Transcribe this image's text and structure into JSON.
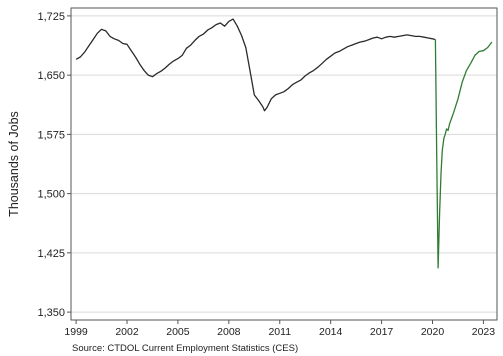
{
  "chart_data": {
    "type": "line",
    "title": "",
    "xlabel": "",
    "ylabel": "Thousands of Jobs",
    "ylim": [
      1340,
      1735
    ],
    "xlim": [
      1998.7,
      2023.8
    ],
    "yticks": [
      1350,
      1425,
      1500,
      1575,
      1650,
      1725
    ],
    "ytick_labels": [
      "1,350",
      "1,425",
      "1,500",
      "1,575",
      "1,650",
      "1,725"
    ],
    "xticks": [
      1999,
      2002,
      2005,
      2008,
      2011,
      2014,
      2017,
      2020,
      2023
    ],
    "xtick_labels": [
      "1999",
      "2002",
      "2005",
      "2008",
      "2011",
      "2014",
      "2017",
      "2020",
      "2023"
    ],
    "grid": "horizontal",
    "legend": "none",
    "colors": {
      "line": "#2b2b2b",
      "covid_segment": "#2e7d32",
      "grid": "#d9d9d9",
      "frame": "#555555"
    },
    "series": [
      {
        "x": [
          1999.0,
          1999.25,
          1999.5,
          1999.75,
          2000.0,
          2000.25,
          2000.5,
          2000.75,
          2001.0,
          2001.25,
          2001.5,
          2001.75,
          2002.0,
          2002.25,
          2002.5,
          2002.75,
          2003.0,
          2003.25,
          2003.5,
          2003.75,
          2004.0,
          2004.25,
          2004.5,
          2004.75,
          2005.0,
          2005.25,
          2005.5,
          2005.75,
          2006.0,
          2006.25,
          2006.5,
          2006.75,
          2007.0,
          2007.25,
          2007.5,
          2007.75,
          2008.0,
          2008.25,
          2008.5,
          2008.75,
          2009.0,
          2009.25,
          2009.5,
          2009.75,
          2010.0,
          2010.1,
          2010.25,
          2010.5,
          2010.75,
          2011.0,
          2011.25,
          2011.5,
          2011.75,
          2012.0,
          2012.25,
          2012.5,
          2012.75,
          2013.0,
          2013.25,
          2013.5,
          2013.75,
          2014.0,
          2014.25,
          2014.5,
          2014.75,
          2015.0,
          2015.25,
          2015.5,
          2015.75,
          2016.0,
          2016.25,
          2016.5,
          2016.75,
          2017.0,
          2017.25,
          2017.5,
          2017.75,
          2018.0,
          2018.25,
          2018.5,
          2018.75,
          2019.0,
          2019.25,
          2019.5,
          2019.75,
          2020.0,
          2020.17
        ],
        "y": [
          1670,
          1673,
          1679,
          1687,
          1695,
          1703,
          1708,
          1706,
          1699,
          1696,
          1694,
          1690,
          1689,
          1681,
          1673,
          1664,
          1656,
          1650,
          1648,
          1652,
          1655,
          1659,
          1664,
          1668,
          1671,
          1675,
          1684,
          1688,
          1694,
          1699,
          1702,
          1707,
          1710,
          1714,
          1716,
          1712,
          1718,
          1721,
          1712,
          1700,
          1685,
          1655,
          1625,
          1618,
          1610,
          1605,
          1609,
          1620,
          1625,
          1627,
          1629,
          1633,
          1638,
          1641,
          1644,
          1649,
          1653,
          1656,
          1660,
          1665,
          1670,
          1674,
          1678,
          1680,
          1683,
          1686,
          1688,
          1690,
          1692,
          1693,
          1695,
          1697,
          1698,
          1696,
          1698,
          1699,
          1698,
          1699,
          1700,
          1701,
          1700,
          1699,
          1699,
          1698,
          1697,
          1696,
          1695
        ]
      },
      {
        "x": [
          2020.17,
          2020.25,
          2020.33,
          2020.42,
          2020.5,
          2020.58,
          2020.67,
          2020.75,
          2020.83,
          2020.92,
          2021.0,
          2021.25,
          2021.5,
          2021.75,
          2022.0,
          2022.25,
          2022.5,
          2022.75,
          2023.0,
          2023.25,
          2023.5
        ],
        "y": [
          1695,
          1550,
          1406,
          1475,
          1525,
          1555,
          1570,
          1575,
          1582,
          1580,
          1588,
          1603,
          1620,
          1641,
          1656,
          1665,
          1675,
          1680,
          1681,
          1685,
          1692
        ]
      }
    ]
  },
  "source": "Source: CTDOL Current Employment Statistics (CES)"
}
